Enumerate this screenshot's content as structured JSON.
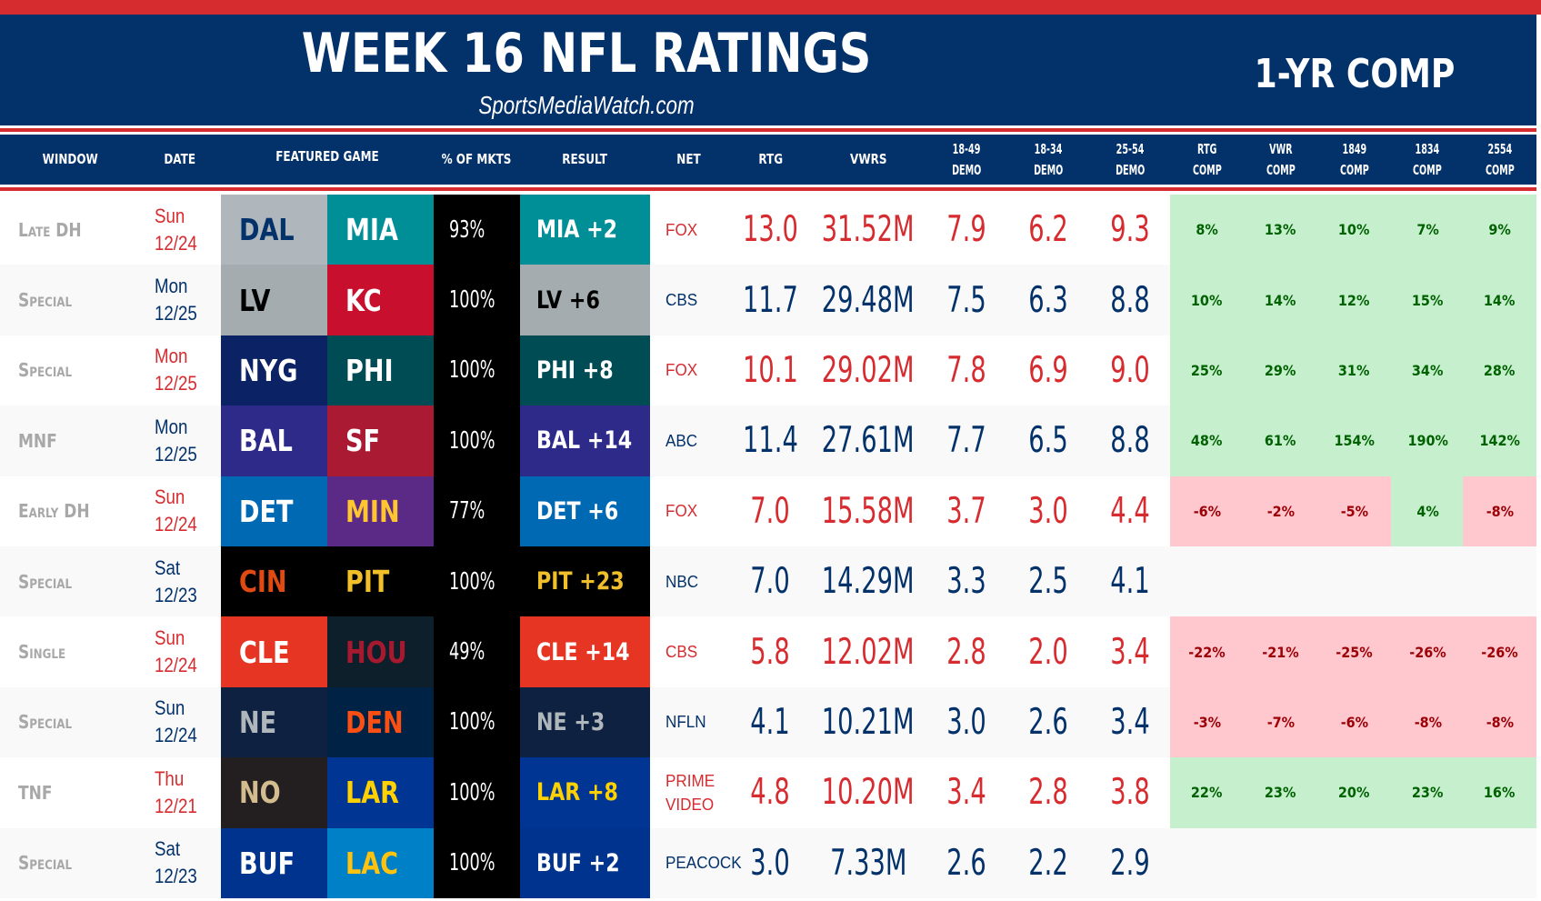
{
  "header": {
    "title": "WEEK 16 NFL RATINGS",
    "subtitle": "SportsMediaWatch.com",
    "comp_title": "1-YR COMP"
  },
  "colors": {
    "brand_navy": "#03316a",
    "brand_red": "#d62b2f",
    "positive_bg": "#c6efce",
    "positive_text": "#006100",
    "negative_bg": "#ffc7ce",
    "negative_text": "#9c0006"
  },
  "columns": {
    "window": "WINDOW",
    "date": "DATE",
    "featured_game": "FEATURED GAME",
    "pct_mkts": "% OF MKTS",
    "result": "RESULT",
    "net": "NET",
    "rtg": "RTG",
    "vwrs": "VWRS",
    "demo_1849_a": "18-49",
    "demo_1849_b": "DEMO",
    "demo_1834_a": "18-34",
    "demo_1834_b": "DEMO",
    "demo_2554_a": "25-54",
    "demo_2554_b": "DEMO",
    "rtg_comp_a": "RTG",
    "rtg_comp_b": "COMP",
    "vwr_comp_a": "VWR",
    "vwr_comp_b": "COMP",
    "c1849_a": "1849",
    "c1849_b": "COMP",
    "c1834_a": "1834",
    "c1834_b": "COMP",
    "c2554_a": "2554",
    "c2554_b": "COMP"
  },
  "rows": [
    {
      "window": "Late DH",
      "day": "Sun",
      "date": "12/24",
      "accent": "red",
      "team1": {
        "abbr": "DAL",
        "bg": "#b0b7bc",
        "fg": "#03316a"
      },
      "team2": {
        "abbr": "MIA",
        "bg": "#008e97",
        "fg": "#ffffff"
      },
      "pct": "93%",
      "result": "MIA +2",
      "result_bg": "#008e97",
      "result_fg": "#ffffff",
      "net": "FOX",
      "rtg": "13.0",
      "vwrs": "31.52M",
      "d1849": "7.9",
      "d1834": "6.2",
      "d2554": "9.3",
      "comp": [
        {
          "v": "8%",
          "s": "pos"
        },
        {
          "v": "13%",
          "s": "pos"
        },
        {
          "v": "10%",
          "s": "pos"
        },
        {
          "v": "7%",
          "s": "pos"
        },
        {
          "v": "9%",
          "s": "pos"
        }
      ]
    },
    {
      "window": "Special",
      "day": "Mon",
      "date": "12/25",
      "accent": "navy",
      "team1": {
        "abbr": "LV",
        "bg": "#a5acaf",
        "fg": "#000000"
      },
      "team2": {
        "abbr": "KC",
        "bg": "#c8102e",
        "fg": "#ffffff"
      },
      "pct": "100%",
      "result": "LV +6",
      "result_bg": "#a5acaf",
      "result_fg": "#000000",
      "net": "CBS",
      "rtg": "11.7",
      "vwrs": "29.48M",
      "d1849": "7.5",
      "d1834": "6.3",
      "d2554": "8.8",
      "comp": [
        {
          "v": "10%",
          "s": "pos"
        },
        {
          "v": "14%",
          "s": "pos"
        },
        {
          "v": "12%",
          "s": "pos"
        },
        {
          "v": "15%",
          "s": "pos"
        },
        {
          "v": "14%",
          "s": "pos"
        }
      ]
    },
    {
      "window": "Special",
      "day": "Mon",
      "date": "12/25",
      "accent": "red",
      "team1": {
        "abbr": "NYG",
        "bg": "#0b2265",
        "fg": "#ffffff"
      },
      "team2": {
        "abbr": "PHI",
        "bg": "#004c54",
        "fg": "#ffffff"
      },
      "pct": "100%",
      "result": "PHI +8",
      "result_bg": "#004c54",
      "result_fg": "#ffffff",
      "net": "FOX",
      "rtg": "10.1",
      "vwrs": "29.02M",
      "d1849": "7.8",
      "d1834": "6.9",
      "d2554": "9.0",
      "comp": [
        {
          "v": "25%",
          "s": "pos"
        },
        {
          "v": "29%",
          "s": "pos"
        },
        {
          "v": "31%",
          "s": "pos"
        },
        {
          "v": "34%",
          "s": "pos"
        },
        {
          "v": "28%",
          "s": "pos"
        }
      ]
    },
    {
      "window": "MNF",
      "day": "Mon",
      "date": "12/25",
      "accent": "navy",
      "team1": {
        "abbr": "BAL",
        "bg": "#2d2a8a",
        "fg": "#ffffff"
      },
      "team2": {
        "abbr": "SF",
        "bg": "#aa1a32",
        "fg": "#ffffff"
      },
      "pct": "100%",
      "result": "BAL +14",
      "result_bg": "#2d2a8a",
      "result_fg": "#ffffff",
      "net": "ABC",
      "rtg": "11.4",
      "vwrs": "27.61M",
      "d1849": "7.7",
      "d1834": "6.5",
      "d2554": "8.8",
      "comp": [
        {
          "v": "48%",
          "s": "pos"
        },
        {
          "v": "61%",
          "s": "pos"
        },
        {
          "v": "154%",
          "s": "pos"
        },
        {
          "v": "190%",
          "s": "pos"
        },
        {
          "v": "142%",
          "s": "pos"
        }
      ]
    },
    {
      "window": "Early DH",
      "day": "Sun",
      "date": "12/24",
      "accent": "red",
      "team1": {
        "abbr": "DET",
        "bg": "#0069b4",
        "fg": "#ffffff"
      },
      "team2": {
        "abbr": "MIN",
        "bg": "#5b2a86",
        "fg": "#ffc62f"
      },
      "pct": "77%",
      "result": "DET +6",
      "result_bg": "#0069b4",
      "result_fg": "#ffffff",
      "net": "FOX",
      "rtg": "7.0",
      "vwrs": "15.58M",
      "d1849": "3.7",
      "d1834": "3.0",
      "d2554": "4.4",
      "comp": [
        {
          "v": "-6%",
          "s": "neg"
        },
        {
          "v": "-2%",
          "s": "neg"
        },
        {
          "v": "-5%",
          "s": "neg"
        },
        {
          "v": "4%",
          "s": "pos"
        },
        {
          "v": "-8%",
          "s": "neg"
        }
      ]
    },
    {
      "window": "Special",
      "day": "Sat",
      "date": "12/23",
      "accent": "navy",
      "team1": {
        "abbr": "CIN",
        "bg": "#000000",
        "fg": "#e04a12"
      },
      "team2": {
        "abbr": "PIT",
        "bg": "#000000",
        "fg": "#f0bf2a"
      },
      "pct": "100%",
      "result": "PIT +23",
      "result_bg": "#000000",
      "result_fg": "#f0bf2a",
      "net": "NBC",
      "rtg": "7.0",
      "vwrs": "14.29M",
      "d1849": "3.3",
      "d1834": "2.5",
      "d2554": "4.1",
      "comp": [
        {
          "v": "",
          "s": "none"
        },
        {
          "v": "",
          "s": "none"
        },
        {
          "v": "",
          "s": "none"
        },
        {
          "v": "",
          "s": "none"
        },
        {
          "v": "",
          "s": "none"
        }
      ]
    },
    {
      "window": "Single",
      "day": "Sun",
      "date": "12/24",
      "accent": "red",
      "team1": {
        "abbr": "CLE",
        "bg": "#e63523",
        "fg": "#ffffff"
      },
      "team2": {
        "abbr": "HOU",
        "bg": "#0c1f2b",
        "fg": "#a6192e"
      },
      "pct": "49%",
      "result": "CLE +14",
      "result_bg": "#e63523",
      "result_fg": "#ffffff",
      "net": "CBS",
      "rtg": "5.8",
      "vwrs": "12.02M",
      "d1849": "2.8",
      "d1834": "2.0",
      "d2554": "3.4",
      "comp": [
        {
          "v": "-22%",
          "s": "neg"
        },
        {
          "v": "-21%",
          "s": "neg"
        },
        {
          "v": "-25%",
          "s": "neg"
        },
        {
          "v": "-26%",
          "s": "neg"
        },
        {
          "v": "-26%",
          "s": "neg"
        }
      ]
    },
    {
      "window": "Special",
      "day": "Sun",
      "date": "12/24",
      "accent": "navy",
      "team1": {
        "abbr": "NE",
        "bg": "#0f2141",
        "fg": "#b0b7bc"
      },
      "team2": {
        "abbr": "DEN",
        "bg": "#002244",
        "fg": "#fb4f14"
      },
      "pct": "100%",
      "result": "NE +3",
      "result_bg": "#0f2141",
      "result_fg": "#b0b7bc",
      "net": "NFLN",
      "rtg": "4.1",
      "vwrs": "10.21M",
      "d1849": "3.0",
      "d1834": "2.6",
      "d2554": "3.4",
      "comp": [
        {
          "v": "-3%",
          "s": "neg"
        },
        {
          "v": "-7%",
          "s": "neg"
        },
        {
          "v": "-6%",
          "s": "neg"
        },
        {
          "v": "-8%",
          "s": "neg"
        },
        {
          "v": "-8%",
          "s": "neg"
        }
      ]
    },
    {
      "window": "TNF",
      "day": "Thu",
      "date": "12/21",
      "accent": "red",
      "team1": {
        "abbr": "NO",
        "bg": "#231f20",
        "fg": "#d3bc8d"
      },
      "team2": {
        "abbr": "LAR",
        "bg": "#003594",
        "fg": "#ffd100"
      },
      "pct": "100%",
      "result": "LAR +8",
      "result_bg": "#003594",
      "result_fg": "#ffd100",
      "net": "PRIME VIDEO",
      "rtg": "4.8",
      "vwrs": "10.20M",
      "d1849": "3.4",
      "d1834": "2.8",
      "d2554": "3.8",
      "comp": [
        {
          "v": "22%",
          "s": "pos"
        },
        {
          "v": "23%",
          "s": "pos"
        },
        {
          "v": "20%",
          "s": "pos"
        },
        {
          "v": "23%",
          "s": "pos"
        },
        {
          "v": "16%",
          "s": "pos"
        }
      ]
    },
    {
      "window": "Special",
      "day": "Sat",
      "date": "12/23",
      "accent": "navy",
      "team1": {
        "abbr": "BUF",
        "bg": "#00338d",
        "fg": "#ffffff"
      },
      "team2": {
        "abbr": "LAC",
        "bg": "#0080c6",
        "fg": "#ffc20e"
      },
      "pct": "100%",
      "result": "BUF +2",
      "result_bg": "#00338d",
      "result_fg": "#ffffff",
      "net": "PEACOCK",
      "rtg": "3.0",
      "vwrs": "7.33M",
      "d1849": "2.6",
      "d1834": "2.2",
      "d2554": "2.9",
      "comp": [
        {
          "v": "",
          "s": "none"
        },
        {
          "v": "",
          "s": "none"
        },
        {
          "v": "",
          "s": "none"
        },
        {
          "v": "",
          "s": "none"
        },
        {
          "v": "",
          "s": "none"
        }
      ]
    }
  ]
}
